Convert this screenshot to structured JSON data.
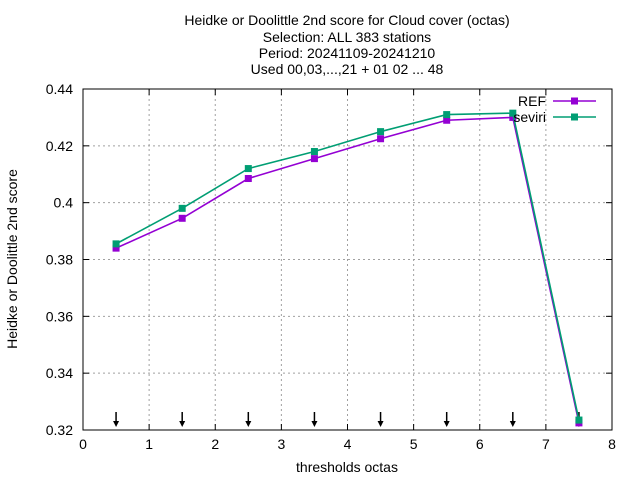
{
  "chart_data": {
    "type": "line",
    "title_lines": [
      "Heidke or Doolittle 2nd score  for Cloud cover (octas)",
      "Selection: ALL    383 stations",
      "Period: 20241109-20241210",
      "Used 00,03,...,21 + 01 02 ... 48"
    ],
    "xlabel": "thresholds octas",
    "ylabel": "Heidke or Doolittle 2nd score",
    "xlim": [
      0,
      8
    ],
    "ylim": [
      0.32,
      0.44
    ],
    "xticks": [
      0,
      1,
      2,
      3,
      4,
      5,
      6,
      7,
      8
    ],
    "yticks": [
      0.32,
      0.34,
      0.36,
      0.38,
      0.4,
      0.42,
      0.44
    ],
    "ytick_labels": [
      "0.32",
      "0.34",
      "0.36",
      "0.38",
      "0.4",
      "0.42",
      "0.44"
    ],
    "grid": true,
    "legend_position": "top-right",
    "x": [
      0.5,
      1.5,
      2.5,
      3.5,
      4.5,
      5.5,
      6.5,
      7.5
    ],
    "series": [
      {
        "name": "REF",
        "color": "#9400d3",
        "values": [
          0.384,
          0.3945,
          0.4085,
          0.4155,
          0.4225,
          0.429,
          0.43,
          0.3225
        ]
      },
      {
        "name": "seviri",
        "color": "#009e73",
        "values": [
          0.3855,
          0.398,
          0.412,
          0.418,
          0.425,
          0.431,
          0.4315,
          0.3235
        ]
      }
    ],
    "arrows_x": [
      0.5,
      1.5,
      2.5,
      3.5,
      4.5,
      5.5,
      6.5,
      7.5
    ]
  }
}
